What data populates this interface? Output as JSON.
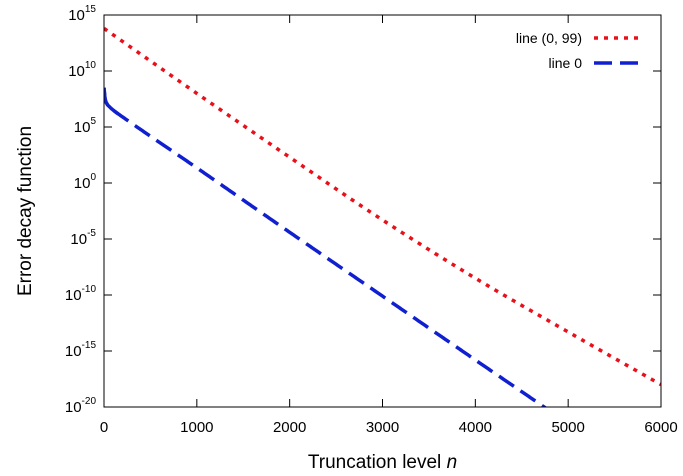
{
  "chart_data": {
    "type": "line",
    "xlabel": "Truncation level",
    "xlabel_var": "n",
    "ylabel": "Error decay function",
    "xlim": [
      0,
      6000
    ],
    "ylim_exponent": [
      -20,
      15
    ],
    "y_scale": "log",
    "grid": false,
    "legend_position": "top-right",
    "x_ticks": [
      "0",
      "1000",
      "2000",
      "3000",
      "4000",
      "5000",
      "6000"
    ],
    "y_ticks": [
      {
        "base": "10",
        "exp": "15",
        "value": 15
      },
      {
        "base": "10",
        "exp": "10",
        "value": 10
      },
      {
        "base": "10",
        "exp": "5",
        "value": 5
      },
      {
        "base": "10",
        "exp": "0",
        "value": 0
      },
      {
        "base": "10",
        "exp": "-5",
        "value": -5
      },
      {
        "base": "10",
        "exp": "-10",
        "value": -10
      },
      {
        "base": "10",
        "exp": "-15",
        "value": -15
      },
      {
        "base": "10",
        "exp": "-20",
        "value": -20
      }
    ],
    "series": [
      {
        "name": "line (0, 99)",
        "color": "#e8101a",
        "style": "dotted",
        "x": [
          0,
          1000,
          2000,
          3000,
          4000,
          5000,
          6000
        ],
        "log10_y": [
          13.8,
          8.0,
          2.3,
          -3.3,
          -8.5,
          -13.3,
          -18.0
        ]
      },
      {
        "name": "line 0",
        "color": "#1020d0",
        "style": "dashed",
        "x": [
          0,
          10,
          30,
          60,
          100,
          200,
          1000,
          2000,
          3000,
          4000,
          5000,
          6000
        ],
        "log10_y": [
          8.5,
          7.6,
          7.1,
          6.8,
          6.5,
          5.9,
          1.35,
          -4.4,
          -10.1,
          -15.8,
          -21.5,
          -27.5
        ]
      }
    ]
  }
}
